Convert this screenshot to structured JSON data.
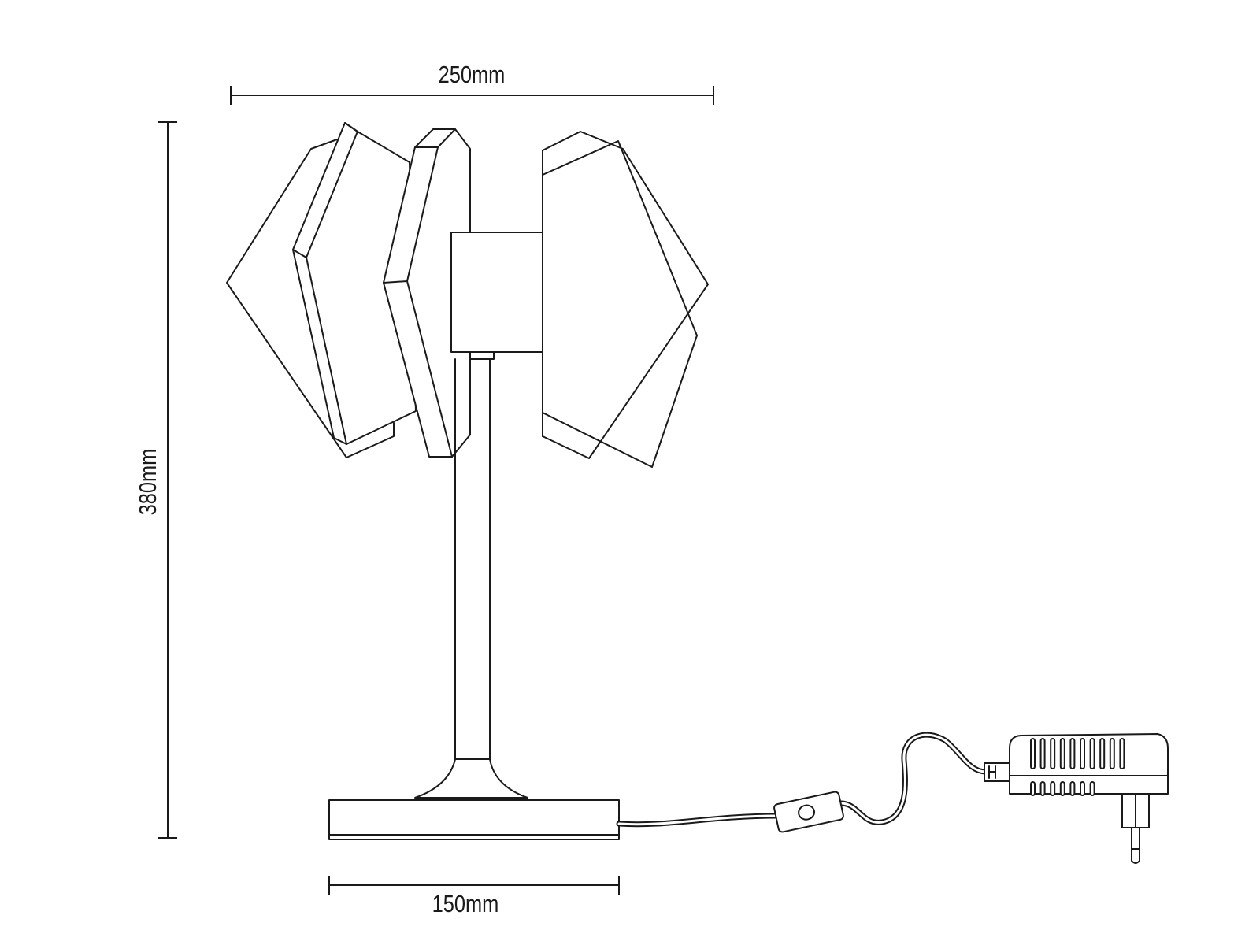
{
  "dimensions": {
    "width_top": "250mm",
    "height": "380mm",
    "base_width": "150mm"
  },
  "colors": {
    "line": "#1a1a1a",
    "background": "#ffffff"
  }
}
